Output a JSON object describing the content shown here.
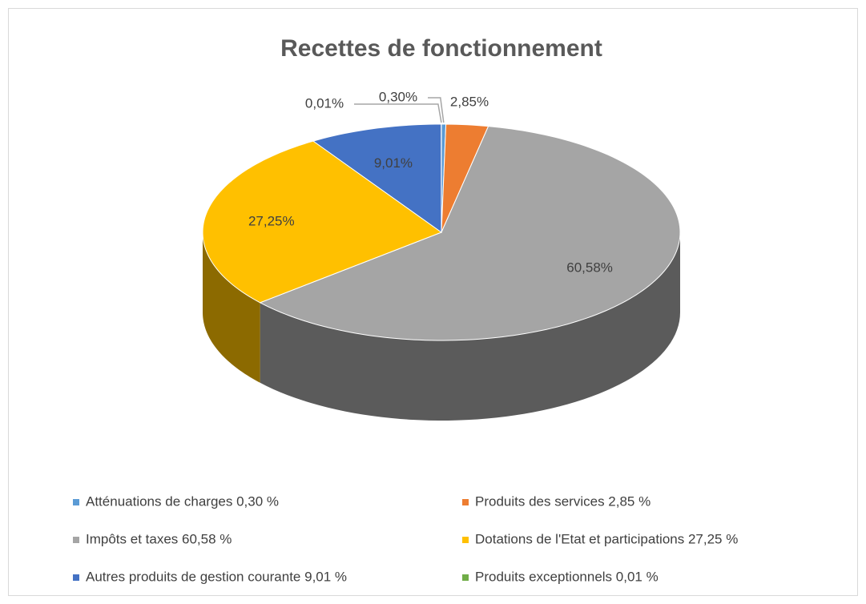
{
  "chart_data": {
    "type": "pie",
    "title": "Recettes de fonctionnement",
    "categories": [
      "Atténuations de charges 0,30 %",
      "Produits des services 2,85 %",
      "Impôts et taxes 60,58 %",
      "Dotations de l'Etat et participations 27,25 %",
      "Autres produits de gestion courante 9,01 %",
      "Produits exceptionnels 0,01 %"
    ],
    "values": [
      0.3,
      2.85,
      60.58,
      27.25,
      9.01,
      0.01
    ],
    "value_labels": [
      "0,30%",
      "2,85%",
      "60,58%",
      "27,25%",
      "9,01%",
      "0,01%"
    ],
    "colors": [
      "#5b9bd5",
      "#ed7d31",
      "#a5a5a5",
      "#ffc000",
      "#4472c4",
      "#70ad47"
    ],
    "legend": "bottom"
  }
}
